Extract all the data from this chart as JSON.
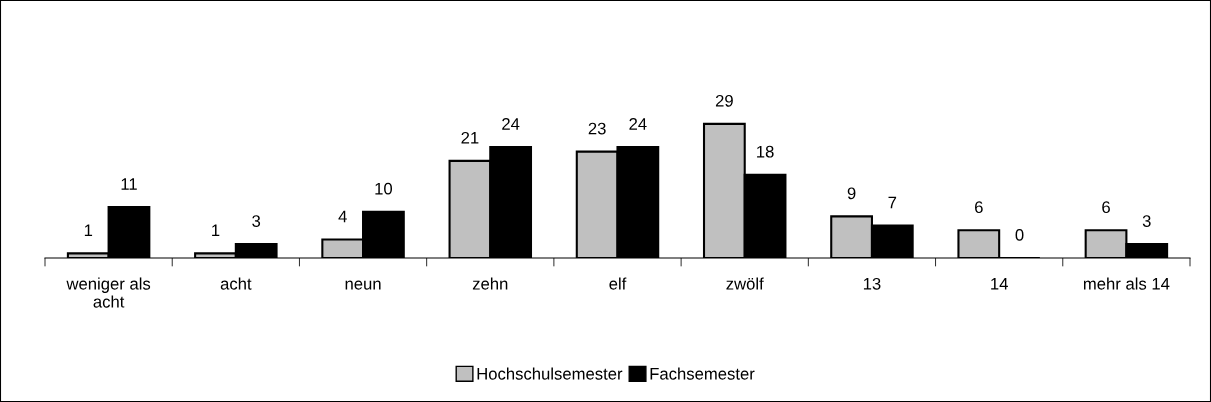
{
  "chart_data": {
    "type": "bar",
    "categories": [
      "weniger als\nacht",
      "acht",
      "neun",
      "zehn",
      "elf",
      "zwölf",
      "13",
      "14",
      "mehr als 14"
    ],
    "series": [
      {
        "name": "Hochschulsemester",
        "color": "#c0c0c0",
        "values": [
          1,
          1,
          4,
          21,
          23,
          29,
          9,
          6,
          6
        ]
      },
      {
        "name": "Fachsemester",
        "color": "#000000",
        "values": [
          11,
          3,
          10,
          24,
          24,
          18,
          7,
          0,
          3
        ]
      }
    ],
    "data_labels": true,
    "legend": "bottom",
    "grid": false
  }
}
